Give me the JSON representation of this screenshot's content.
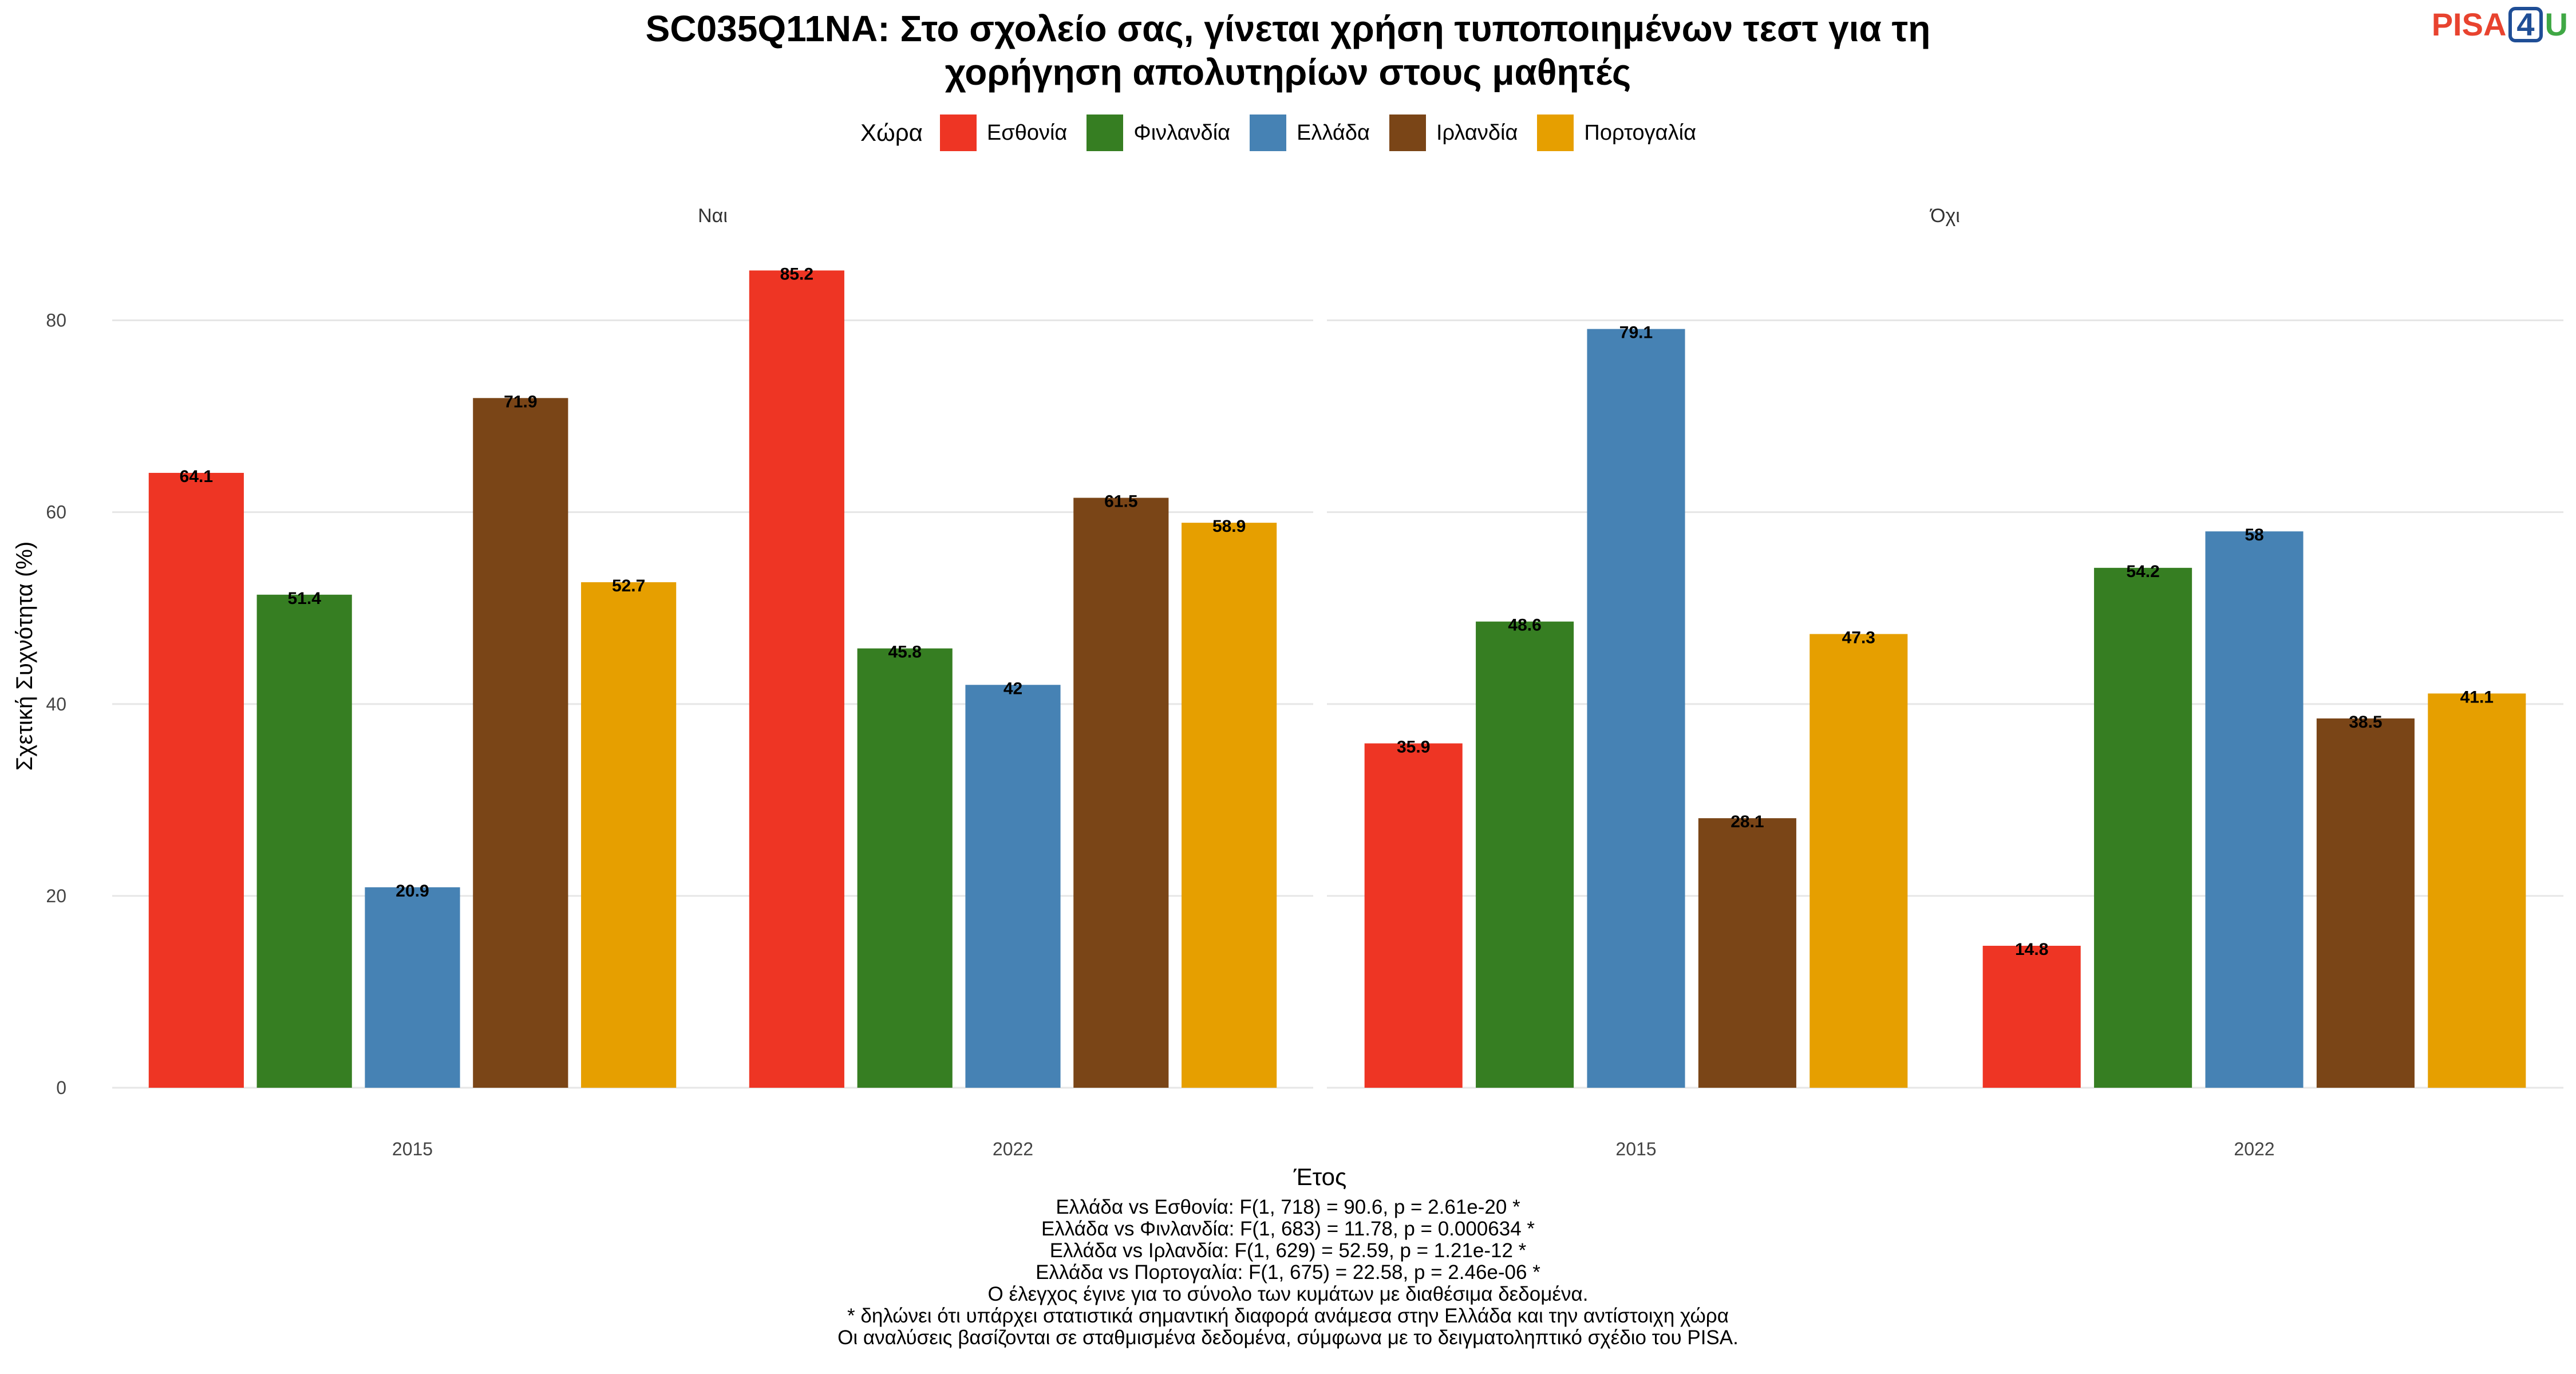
{
  "title_lines": [
    "SC035Q11NA: Στο σχολείο σας, γίνεται χρήση τυποποιημένων τεστ για τη",
    "χορήγηση απολυτηρίων στους μαθητές"
  ],
  "logo": {
    "pisa": "PISA",
    "four": "4",
    "u": "U"
  },
  "legend": {
    "title": "Χώρα",
    "items": [
      {
        "label": "Εσθονία",
        "color": "#ee3524"
      },
      {
        "label": "Φινλανδία",
        "color": "#367e22"
      },
      {
        "label": "Ελλάδα",
        "color": "#4682b4"
      },
      {
        "label": "Ιρλανδία",
        "color": "#7a4517"
      },
      {
        "label": "Πορτογαλία",
        "color": "#e69f00"
      }
    ]
  },
  "footer_lines": [
    "Ελλάδα vs Εσθονία: F(1, 718) = 90.6, p = 2.61e-20 *",
    "Ελλάδα vs Φινλανδία: F(1, 683) = 11.78, p = 0.000634 *",
    "Ελλάδα vs Ιρλανδία: F(1, 629) = 52.59, p = 1.21e-12 *",
    "Ελλάδα vs Πορτογαλία: F(1, 675) = 22.58, p = 2.46e-06 *",
    "Ο έλεγχος έγινε για το σύνολο των κυμάτων με διαθέσιμα δεδομένα.",
    "* δηλώνει ότι υπάρχει στατιστικά σημαντική διαφορά ανάμεσα στην Ελλάδα και την αντίστοιχη χώρα",
    "Οι αναλύσεις βασίζονται σε σταθμισμένα δεδομένα, σύμφωνα με το δειγματοληπτικό σχέδιο του PISA."
  ],
  "chart_data": {
    "type": "bar",
    "xlabel": "Έτος",
    "ylabel": "Σχετική Συχνότητα (%)",
    "ylim": [
      0,
      90
    ],
    "yticks": [
      0,
      20,
      40,
      60,
      80
    ],
    "grid": true,
    "legend_position": "top",
    "categories": [
      "2015",
      "2022"
    ],
    "series_names": [
      "Εσθονία",
      "Φινλανδία",
      "Ελλάδα",
      "Ιρλανδία",
      "Πορτογαλία"
    ],
    "panels": [
      {
        "label": "Ναι",
        "series": [
          {
            "name": "Εσθονία",
            "values": [
              64.1,
              85.2
            ]
          },
          {
            "name": "Φινλανδία",
            "values": [
              51.4,
              45.8
            ]
          },
          {
            "name": "Ελλάδα",
            "values": [
              20.9,
              42
            ]
          },
          {
            "name": "Ιρλανδία",
            "values": [
              71.9,
              61.5
            ]
          },
          {
            "name": "Πορτογαλία",
            "values": [
              52.7,
              58.9
            ]
          }
        ]
      },
      {
        "label": "Όχι",
        "series": [
          {
            "name": "Εσθονία",
            "values": [
              35.9,
              14.8
            ]
          },
          {
            "name": "Φινλανδία",
            "values": [
              48.6,
              54.2
            ]
          },
          {
            "name": "Ελλάδα",
            "values": [
              79.1,
              58
            ]
          },
          {
            "name": "Ιρλανδία",
            "values": [
              28.1,
              38.5
            ]
          },
          {
            "name": "Πορτογαλία",
            "values": [
              47.3,
              41.1
            ]
          }
        ]
      }
    ]
  }
}
